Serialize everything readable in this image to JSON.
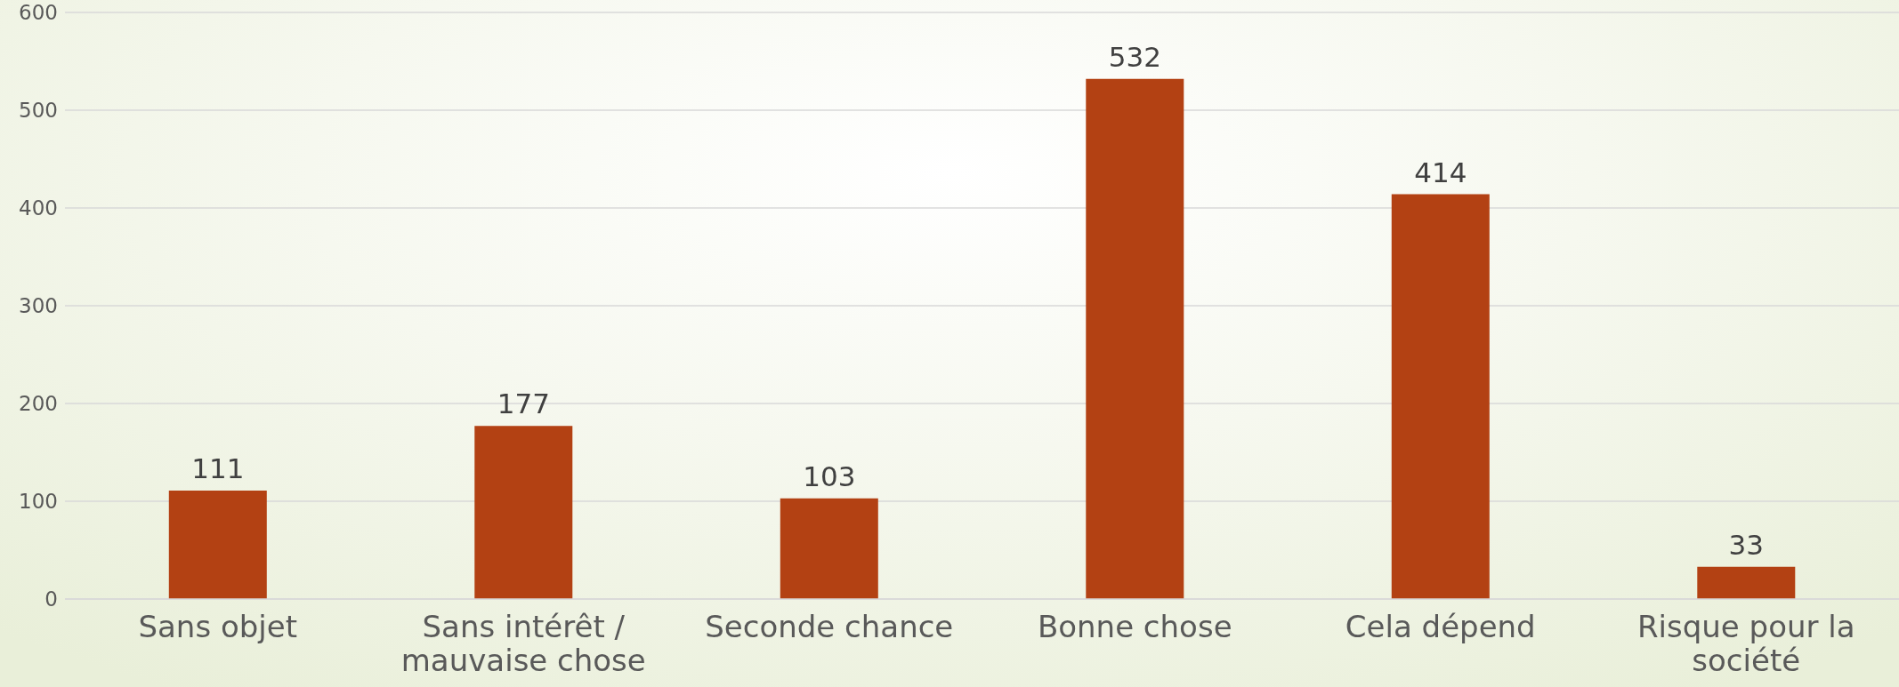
{
  "chart_data": {
    "type": "bar",
    "categories": [
      "Sans objet",
      "Sans intérêt / mauvaise chose",
      "Seconde chance",
      "Bonne chose",
      "Cela dépend",
      "Risque pour la société"
    ],
    "values": [
      111,
      177,
      103,
      532,
      414,
      33
    ],
    "color": "#b34113",
    "ylim": [
      0,
      600
    ],
    "yticks": [
      0,
      100,
      200,
      300,
      400,
      500,
      600
    ],
    "grid": "y",
    "data_labels": true
  }
}
